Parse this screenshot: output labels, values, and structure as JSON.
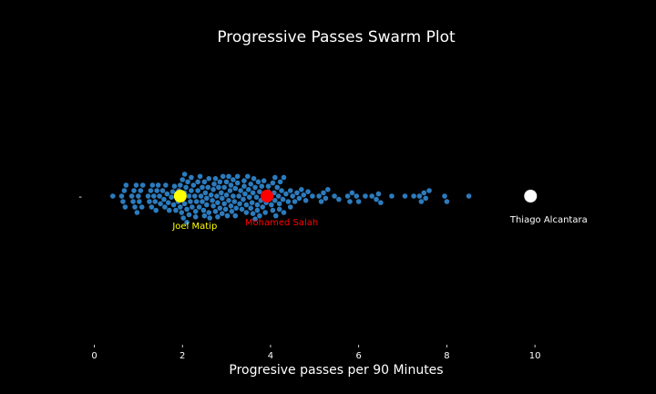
{
  "chart_data": {
    "type": "scatter",
    "subtype": "swarm",
    "title": "Progressive Passes Swarm Plot",
    "xlabel": "Progresive passes per 90 Minutes",
    "ylabel": "",
    "xlim": [
      -0.3,
      11.3
    ],
    "xticks": [
      0,
      2,
      4,
      6,
      8,
      10
    ],
    "y_tick_labels": [
      "-"
    ],
    "grid": false,
    "legend": "none",
    "colors": {
      "background": "#000000",
      "points": "#2c7bbd",
      "text": "#ffffff"
    },
    "values": [
      0.42,
      0.62,
      0.65,
      0.68,
      0.7,
      0.72,
      0.85,
      0.88,
      0.9,
      0.92,
      0.95,
      0.97,
      1.0,
      1.02,
      1.05,
      1.08,
      1.1,
      1.22,
      1.25,
      1.28,
      1.3,
      1.32,
      1.35,
      1.38,
      1.4,
      1.42,
      1.45,
      1.48,
      1.5,
      1.55,
      1.58,
      1.62,
      1.65,
      1.68,
      1.7,
      1.75,
      1.78,
      1.8,
      1.82,
      1.85,
      1.88,
      1.9,
      1.92,
      1.95,
      1.98,
      2.0,
      2.0,
      2.02,
      2.05,
      2.05,
      2.08,
      2.1,
      2.12,
      2.15,
      2.18,
      2.2,
      2.22,
      2.25,
      2.28,
      2.3,
      2.32,
      2.35,
      2.38,
      2.4,
      2.42,
      2.45,
      2.48,
      2.5,
      2.52,
      2.55,
      2.58,
      2.6,
      2.62,
      2.65,
      2.68,
      2.7,
      2.72,
      2.75,
      2.78,
      2.8,
      2.82,
      2.85,
      2.88,
      2.9,
      2.92,
      2.95,
      2.98,
      3.0,
      3.02,
      3.05,
      3.08,
      3.1,
      3.12,
      3.15,
      3.18,
      3.2,
      3.22,
      3.25,
      3.28,
      3.3,
      3.32,
      3.35,
      3.38,
      3.4,
      3.42,
      3.45,
      3.48,
      3.5,
      3.52,
      3.55,
      3.58,
      3.6,
      3.62,
      3.65,
      3.68,
      3.7,
      3.72,
      3.75,
      3.78,
      3.8,
      3.82,
      3.85,
      3.88,
      3.9,
      3.95,
      4.0,
      4.02,
      4.05,
      4.08,
      4.1,
      4.12,
      4.15,
      4.18,
      4.2,
      4.22,
      4.25,
      4.28,
      4.3,
      4.35,
      4.4,
      4.45,
      4.5,
      4.55,
      4.6,
      4.65,
      4.7,
      4.75,
      4.8,
      4.85,
      4.95,
      5.1,
      5.15,
      5.2,
      5.25,
      5.3,
      5.45,
      5.55,
      5.75,
      5.8,
      5.85,
      5.95,
      6.0,
      6.15,
      6.3,
      6.4,
      6.45,
      6.5,
      6.75,
      7.05,
      7.25,
      7.38,
      7.42,
      7.48,
      7.52,
      7.6,
      7.95,
      8.0,
      8.5,
      2.1,
      2.95,
      3.0,
      3.6,
      4.1,
      4.2,
      2.3,
      2.45,
      2.7,
      3.1,
      3.4,
      3.7,
      1.95,
      2.2,
      2.6,
      2.85,
      3.25,
      3.95,
      4.45,
      1.6,
      2.05,
      2.5,
      2.9,
      3.15,
      3.55,
      3.85,
      4.05,
      4.3,
      2.35,
      2.75,
      3.05,
      3.45,
      3.75,
      2.15,
      2.55,
      2.8,
      3.2,
      3.65
    ],
    "highlights": [
      {
        "name": "Joel Matip",
        "value": 1.95,
        "color": "#ffff00"
      },
      {
        "name": "Mohamed Salah",
        "value": 3.92,
        "color": "#ff0000"
      },
      {
        "name": "Thiago Alcantara",
        "value": 9.9,
        "color": "#ffffff"
      }
    ]
  }
}
